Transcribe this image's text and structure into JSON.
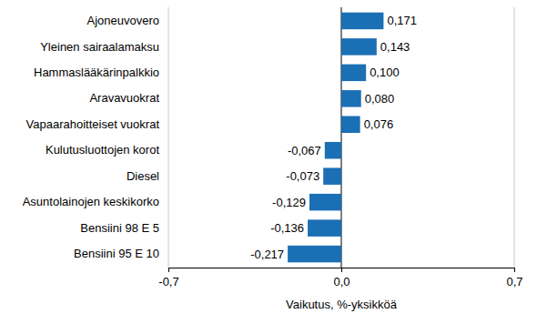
{
  "chart_data": {
    "type": "bar",
    "orientation": "horizontal",
    "x_label": "Vaikutus, %-yksikköä",
    "categories": [
      "Ajoneuvovero",
      "Yleinen sairaalamaksu",
      "Hammaslääkärinpalkkio",
      "Aravavuokrat",
      "Vapaarahoitteiset vuokrat",
      "Kulutusluottojen korot",
      "Diesel",
      "Asuntolainojen keskikorko",
      "Bensiini 98 E 5",
      "Bensiini 95 E 10"
    ],
    "values": [
      0.171,
      0.143,
      0.1,
      0.08,
      0.076,
      -0.067,
      -0.073,
      -0.129,
      -0.136,
      -0.217
    ],
    "value_labels": [
      "0,171",
      "0,143",
      "0,100",
      "0,080",
      "0,076",
      "-0,067",
      "-0,073",
      "-0,129",
      "-0,136",
      "-0,217"
    ],
    "color": "#1b6fb5",
    "xlim": [
      -0.7,
      0.7
    ],
    "xticks": [
      {
        "value": -0.7,
        "label": "-0,7"
      },
      {
        "value": 0,
        "label": "0,0"
      },
      {
        "value": 0.7,
        "label": "0,7"
      }
    ],
    "grid": true,
    "data_labels": true
  }
}
